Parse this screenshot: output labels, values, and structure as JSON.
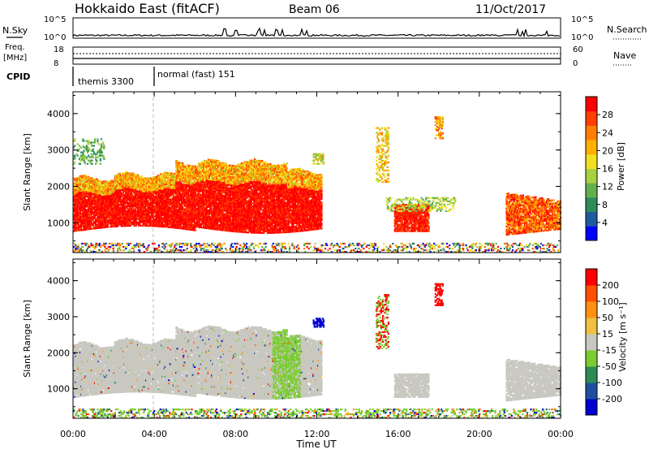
{
  "header": {
    "station": "Hokkaido East (fitACF)",
    "beam": "Beam 06",
    "date": "11/Oct/2017"
  },
  "strip_panels": {
    "nsky": {
      "label": "N.Sky",
      "ticks": [
        "10^5",
        "10^0"
      ],
      "right_ticks": [
        "10^5",
        "10^0"
      ],
      "right_label": "N.Search"
    },
    "freq": {
      "label_line1": "Freq.",
      "label_line2": "[MHz]",
      "ticks": [
        "18",
        "8"
      ],
      "right_ticks": [
        "60",
        "0"
      ],
      "right_label": "Nave"
    },
    "cpid": {
      "label": "CPID",
      "segments": [
        {
          "start_hour": 0.1,
          "text": "themis 3300"
        },
        {
          "start_hour": 3.95,
          "text": "normal (fast) 151"
        }
      ]
    }
  },
  "chart_data": [
    {
      "type": "heatmap",
      "panel": "power",
      "ylabel": "Slant Range [km]",
      "xlabel": "",
      "x_ticks": [
        "00:00",
        "04:00",
        "08:00",
        "12:00",
        "16:00",
        "20:00",
        "00:00"
      ],
      "xlim_hours": [
        0,
        24
      ],
      "y_ticks": [
        1000,
        2000,
        3000,
        4000
      ],
      "ylim_km": [
        180,
        4600
      ],
      "colorbar": {
        "label": "Power [dB]",
        "ticks": [
          "28",
          "24",
          "20",
          "16",
          "12",
          "8",
          "4"
        ],
        "range": [
          0,
          30
        ],
        "colors": [
          "#0000ff",
          "#1e5aa0",
          "#2d8c5a",
          "#63b050",
          "#a8d040",
          "#f0e020",
          "#ffb000",
          "#ff8000",
          "#ff4000",
          "#ff0000"
        ]
      }
    },
    {
      "type": "heatmap",
      "panel": "velocity",
      "ylabel": "Slant Range [km]",
      "xlabel": "Time UT",
      "x_ticks": [
        "00:00",
        "04:00",
        "08:00",
        "12:00",
        "16:00",
        "20:00",
        "00:00"
      ],
      "xlim_hours": [
        0,
        24
      ],
      "y_ticks": [
        1000,
        2000,
        3000,
        4000
      ],
      "ylim_km": [
        180,
        4600
      ],
      "colorbar": {
        "label": "Velocity [m s⁻¹]",
        "ticks": [
          "200",
          "100",
          "50",
          "15",
          "-15",
          "-50",
          "-100",
          "-200"
        ],
        "colors": [
          "#0000d0",
          "#1e50a0",
          "#2e8b57",
          "#7acc30",
          "#c8c8c0",
          "#f0c040",
          "#ff9010",
          "#ff5000",
          "#ff0000"
        ]
      }
    }
  ]
}
